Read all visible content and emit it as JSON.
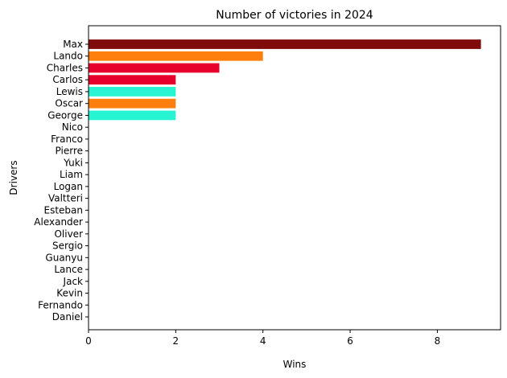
{
  "chart_data": {
    "type": "bar",
    "orientation": "horizontal",
    "title": "Number of victories in 2024",
    "xlabel": "Wins",
    "ylabel": "Drivers",
    "xlim": [
      0,
      9.45
    ],
    "xticks": [
      0,
      2,
      4,
      6,
      8
    ],
    "grid": false,
    "categories": [
      "Max",
      "Lando",
      "Charles",
      "Carlos",
      "Lewis",
      "Oscar",
      "George",
      "Nico",
      "Franco",
      "Pierre",
      "Yuki",
      "Liam",
      "Logan",
      "Valtteri",
      "Esteban",
      "Alexander",
      "Oliver",
      "Sergio",
      "Guanyu",
      "Lance",
      "Jack",
      "Kevin",
      "Fernando",
      "Daniel"
    ],
    "values": [
      9,
      4,
      3,
      2,
      2,
      2,
      2,
      0,
      0,
      0,
      0,
      0,
      0,
      0,
      0,
      0,
      0,
      0,
      0,
      0,
      0,
      0,
      0,
      0
    ],
    "colors": [
      "#800b0b",
      "#ff7f0e",
      "#e8002d",
      "#e8002d",
      "#27f4d2",
      "#ff7f0e",
      "#27f4d2",
      "#e8002d",
      "#e8002d",
      "#e8002d",
      "#e8002d",
      "#e8002d",
      "#e8002d",
      "#e8002d",
      "#e8002d",
      "#e8002d",
      "#e8002d",
      "#e8002d",
      "#e8002d",
      "#e8002d",
      "#e8002d",
      "#e8002d",
      "#e8002d",
      "#e8002d"
    ]
  }
}
